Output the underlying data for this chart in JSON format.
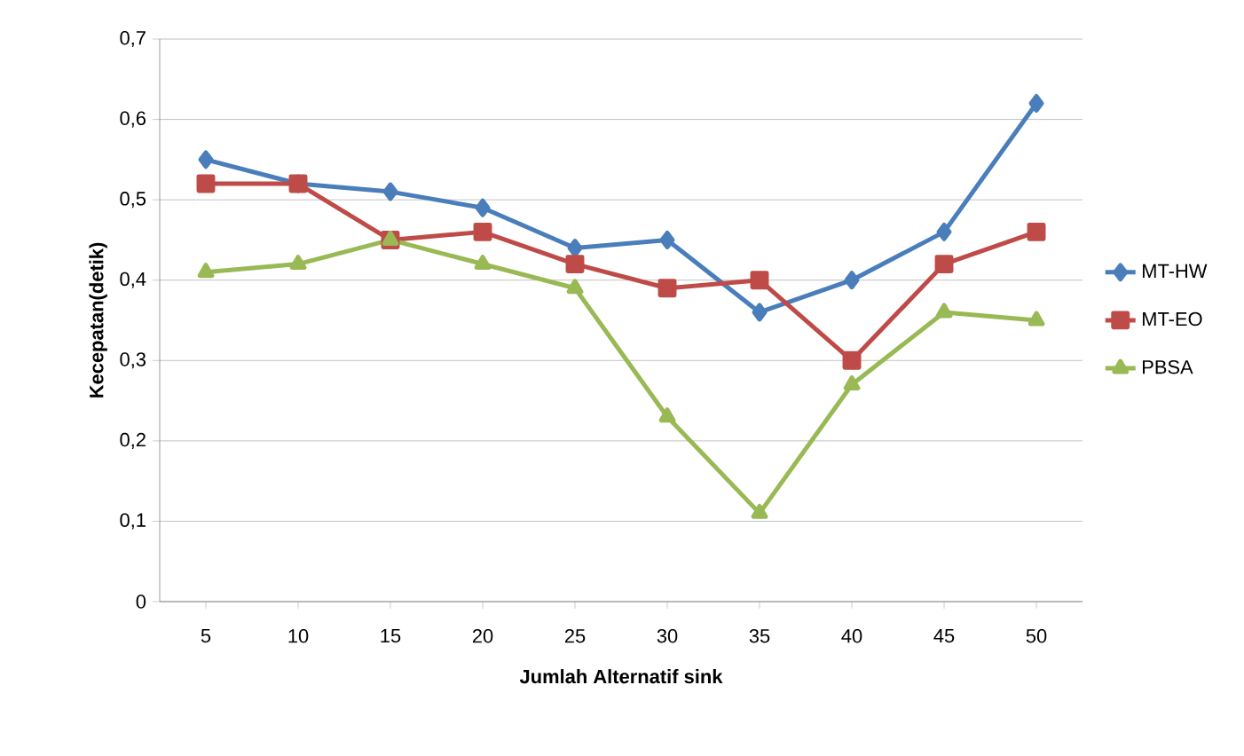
{
  "chart_data": {
    "type": "line",
    "xlabel": "Jumlah Alternatif sink",
    "ylabel": "Kecepatan(detik)",
    "categories": [
      "5",
      "10",
      "15",
      "20",
      "25",
      "30",
      "35",
      "40",
      "45",
      "50"
    ],
    "series": [
      {
        "name": "MT-HW",
        "color": "#4a7ebb",
        "marker": "diamond",
        "values": [
          0.55,
          0.52,
          0.51,
          0.49,
          0.44,
          0.45,
          0.36,
          0.4,
          0.46,
          0.62
        ]
      },
      {
        "name": "MT-EO",
        "color": "#be4b48",
        "marker": "square",
        "values": [
          0.52,
          0.52,
          0.45,
          0.46,
          0.42,
          0.39,
          0.4,
          0.3,
          0.42,
          0.46
        ]
      },
      {
        "name": "PBSA",
        "color": "#98b954",
        "marker": "triangle",
        "values": [
          0.41,
          0.42,
          0.45,
          0.42,
          0.39,
          0.23,
          0.11,
          0.27,
          0.36,
          0.35
        ]
      }
    ],
    "ylim": [
      0,
      0.7
    ],
    "yticks": [
      0,
      {
        "value": 0.1,
        "label": "0,1"
      },
      {
        "value": 0.2,
        "label": "0,2"
      },
      {
        "value": 0.3,
        "label": "0,3"
      },
      {
        "value": 0.4,
        "label": "0,4"
      },
      {
        "value": 0.5,
        "label": "0,5"
      },
      {
        "value": 0.6,
        "label": "0,6"
      },
      {
        "value": 0.7,
        "label": "0,7"
      }
    ],
    "grid": "y",
    "legend": "right",
    "line_style": "solid"
  }
}
